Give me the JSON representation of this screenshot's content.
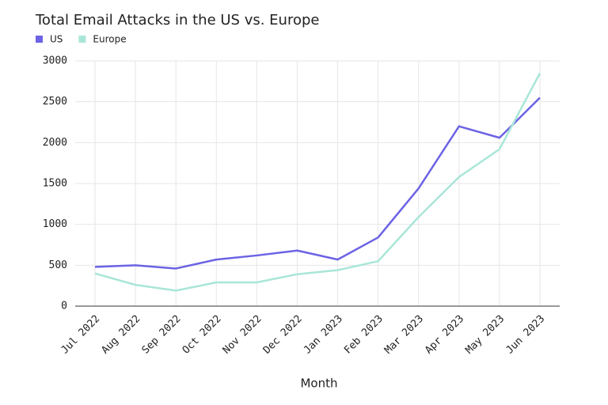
{
  "chart_data": {
    "type": "line",
    "title": "Total Email Attacks in the US vs. Europe",
    "x_label": "Month",
    "categories": [
      "Jul 2022",
      "Aug 2022",
      "Sep 2022",
      "Oct 2022",
      "Nov 2022",
      "Dec 2022",
      "Jan 2023",
      "Feb 2023",
      "Mar 2023",
      "Apr 2023",
      "May 2023",
      "Jun 2023"
    ],
    "series": [
      {
        "name": "US",
        "color": "#6c63e4",
        "values": [
          480,
          500,
          460,
          570,
          620,
          680,
          570,
          840,
          1440,
          2200,
          2060,
          2550
        ]
      },
      {
        "name": "Europe",
        "color": "#a9e6d8",
        "values": [
          400,
          260,
          190,
          290,
          290,
          390,
          440,
          550,
          1090,
          1580,
          1920,
          2850
        ]
      }
    ],
    "ylim": [
      0,
      3000
    ],
    "yticks": [
      0,
      500,
      1000,
      1500,
      2000,
      2500,
      3000
    ],
    "grid": true,
    "legend": "top-left"
  }
}
